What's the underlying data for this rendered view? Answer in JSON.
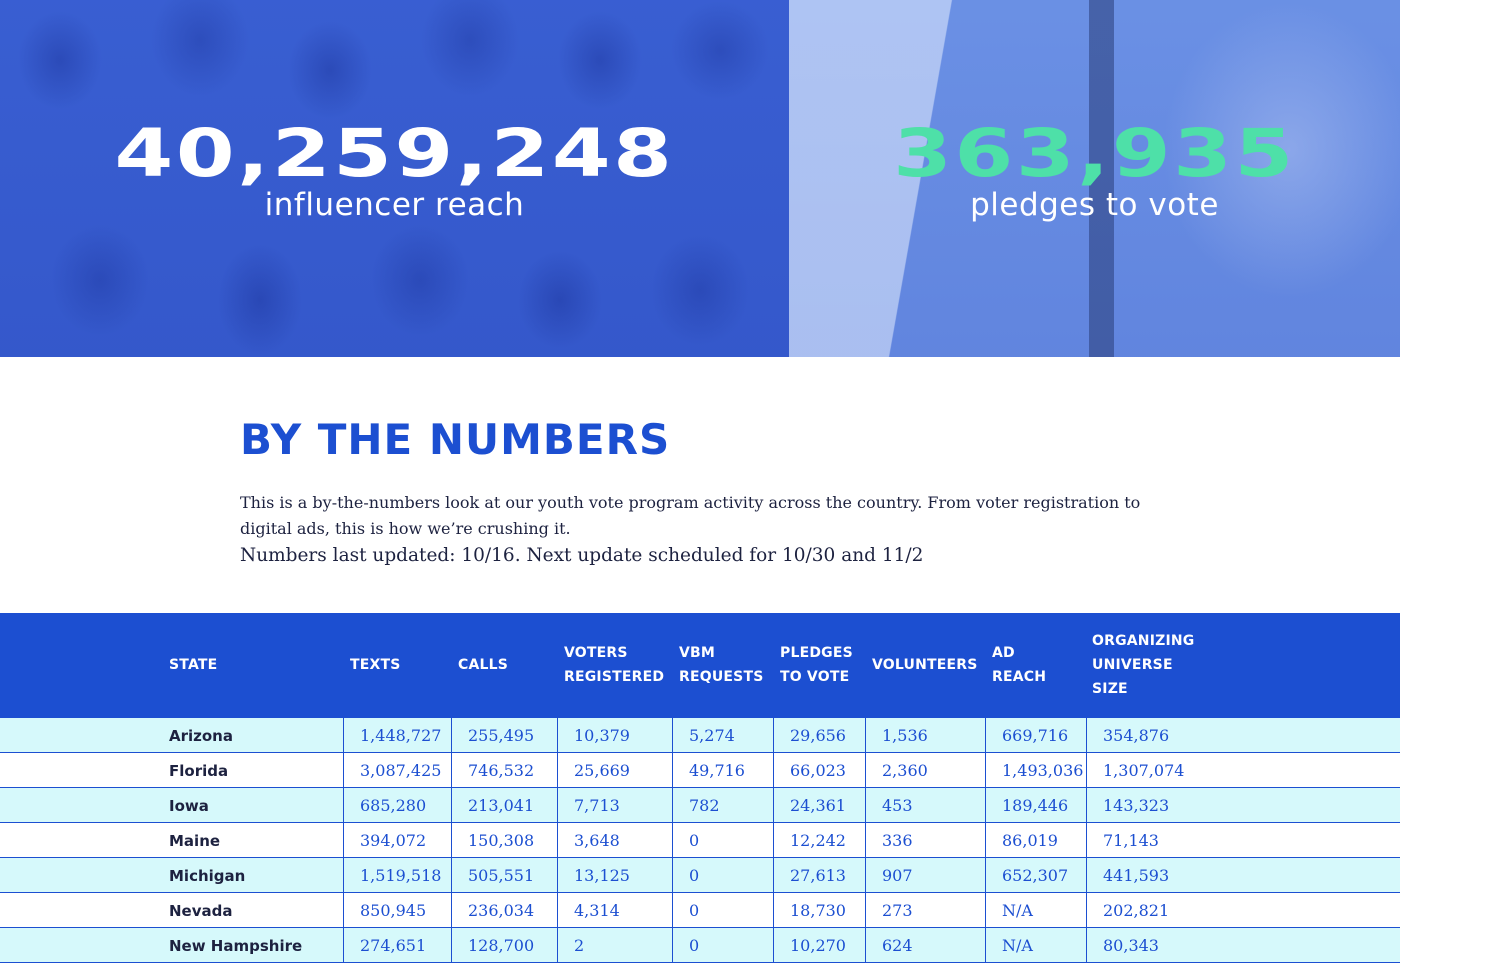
{
  "hero": {
    "left": {
      "number": "40,259,248",
      "label": "influencer reach"
    },
    "right": {
      "number": "363,935",
      "label": "pledges to vote"
    }
  },
  "intro": {
    "title": "BY THE NUMBERS",
    "description": "This is a by-the-numbers look at our youth vote program activity across the country. From voter registration to digital ads, this is how we’re crushing it.",
    "updated": "Numbers last updated: 10/16. Next update scheduled for 10/30 and 11/2"
  },
  "table": {
    "headers": [
      "STATE",
      "TEXTS",
      "CALLS",
      "VOTERS REGISTERED",
      "VBM REQUESTS",
      "PLEDGES TO VOTE",
      "VOLUNTEERS",
      "AD REACH",
      "ORGANIZING UNIVERSE SIZE"
    ],
    "rows": [
      [
        "Arizona",
        "1,448,727",
        "255,495",
        "10,379",
        "5,274",
        "29,656",
        "1,536",
        "669,716",
        "354,876"
      ],
      [
        "Florida",
        "3,087,425",
        "746,532",
        "25,669",
        "49,716",
        "66,023",
        "2,360",
        "1,493,036",
        "1,307,074"
      ],
      [
        "Iowa",
        "685,280",
        "213,041",
        "7,713",
        "782",
        "24,361",
        "453",
        "189,446",
        "143,323"
      ],
      [
        "Maine",
        "394,072",
        "150,308",
        "3,648",
        "0",
        "12,242",
        "336",
        "86,019",
        "71,143"
      ],
      [
        "Michigan",
        "1,519,518",
        "505,551",
        "13,125",
        "0",
        "27,613",
        "907",
        "652,307",
        "441,593"
      ],
      [
        "Nevada",
        "850,945",
        "236,034",
        "4,314",
        "0",
        "18,730",
        "273",
        "N/A",
        "202,821"
      ],
      [
        "New Hampshire",
        "274,651",
        "128,700",
        "2",
        "0",
        "10,270",
        "624",
        "N/A",
        "80,343"
      ]
    ]
  },
  "colors": {
    "brand_blue": "#1c4fd1",
    "accent_green": "#4ee0a8",
    "row_tint": "#d6f9fb",
    "body_text": "#1d2240"
  }
}
